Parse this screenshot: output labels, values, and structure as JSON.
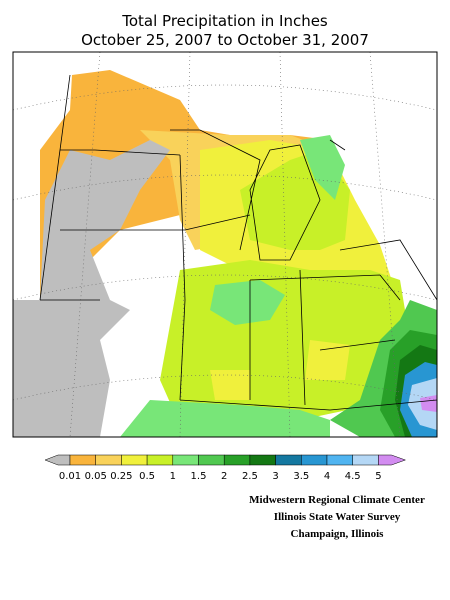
{
  "title": [
    "Total Precipitation in Inches",
    "October 25, 2007 to October 31, 2007"
  ],
  "legend": {
    "labels": [
      "0.01",
      "0.05",
      "0.25",
      "0.5",
      "1",
      "1.5",
      "2",
      "2.5",
      "3",
      "3.5",
      "4",
      "4.5",
      "5"
    ],
    "colors": [
      "#bebebe",
      "#f9b43c",
      "#f9d25a",
      "#f0f03c",
      "#c8f028",
      "#78e678",
      "#50c850",
      "#28a028",
      "#147814",
      "#1478a0",
      "#2896d2",
      "#50b4f0",
      "#b4d7f5",
      "#d28cf0"
    ]
  },
  "credits": [
    "Midwestern Regional Climate Center",
    "Illinois State Water Survey",
    "Champaign, Illinois"
  ]
}
